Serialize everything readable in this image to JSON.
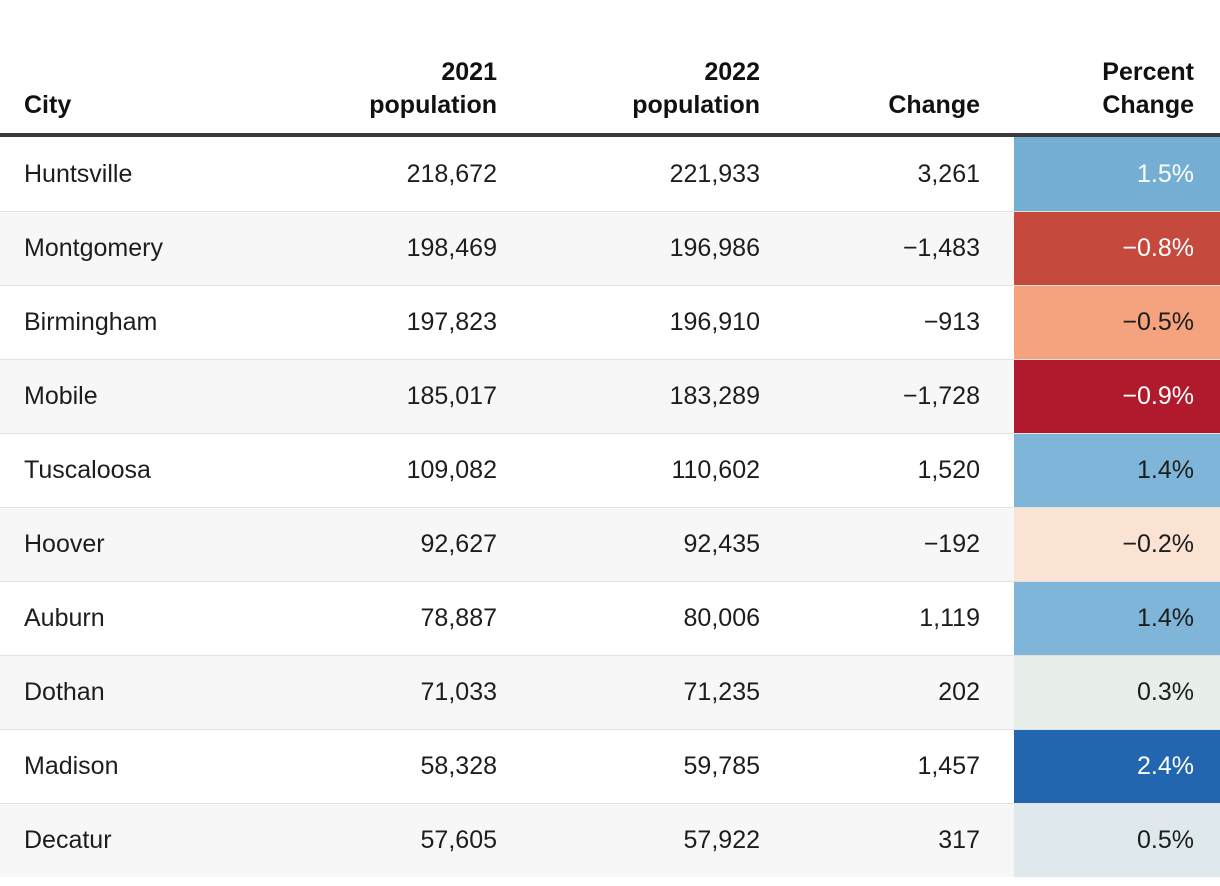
{
  "header": {
    "city": "City",
    "pop2021_line1": "2021",
    "pop2021_line2": "population",
    "pop2022_line1": "2022",
    "pop2022_line2": "population",
    "change": "Change",
    "percent_line1": "Percent",
    "percent_line2": "Change"
  },
  "table": {
    "rows": [
      {
        "city": "Huntsville",
        "pop2021": "218,672",
        "pop2022": "221,933",
        "change": "3,261",
        "percent": "1.5%",
        "percent_bg": "#74afd3",
        "percent_color": "#ffffff"
      },
      {
        "city": "Montgomery",
        "pop2021": "198,469",
        "pop2022": "196,986",
        "change": "−1,483",
        "percent": "−0.8%",
        "percent_bg": "#c5493d",
        "percent_color": "#ffffff"
      },
      {
        "city": "Birmingham",
        "pop2021": "197,823",
        "pop2022": "196,910",
        "change": "−913",
        "percent": "−0.5%",
        "percent_bg": "#f5a27f",
        "percent_color": "#1d1d1d"
      },
      {
        "city": "Mobile",
        "pop2021": "185,017",
        "pop2022": "183,289",
        "change": "−1,728",
        "percent": "−0.9%",
        "percent_bg": "#b11a2c",
        "percent_color": "#ffffff"
      },
      {
        "city": "Tuscaloosa",
        "pop2021": "109,082",
        "pop2022": "110,602",
        "change": "1,520",
        "percent": "1.4%",
        "percent_bg": "#7fb5d8",
        "percent_color": "#1d1d1d"
      },
      {
        "city": "Hoover",
        "pop2021": "92,627",
        "pop2022": "92,435",
        "change": "−192",
        "percent": "−0.2%",
        "percent_bg": "#fbe3d3",
        "percent_color": "#1d1d1d"
      },
      {
        "city": "Auburn",
        "pop2021": "78,887",
        "pop2022": "80,006",
        "change": "1,119",
        "percent": "1.4%",
        "percent_bg": "#7fb5d8",
        "percent_color": "#1d1d1d"
      },
      {
        "city": "Dothan",
        "pop2021": "71,033",
        "pop2022": "71,235",
        "change": "202",
        "percent": "0.3%",
        "percent_bg": "#e8eee9",
        "percent_color": "#1d1d1d"
      },
      {
        "city": "Madison",
        "pop2021": "58,328",
        "pop2022": "59,785",
        "change": "1,457",
        "percent": "2.4%",
        "percent_bg": "#2166ae",
        "percent_color": "#ffffff"
      },
      {
        "city": "Decatur",
        "pop2021": "57,605",
        "pop2022": "57,922",
        "change": "317",
        "percent": "0.5%",
        "percent_bg": "#dfe9ed",
        "percent_color": "#1d1d1d"
      }
    ]
  },
  "style": {
    "stripe_color": "#f7f7f7",
    "separator_color": "#e2e2e2",
    "header_border_color": "#3a3a3a",
    "text_color": "#1d1d1d"
  },
  "chart_data": {
    "type": "table",
    "columns": [
      "City",
      "2021 population",
      "2022 population",
      "Change",
      "Percent Change"
    ],
    "rows": [
      [
        "Huntsville",
        218672,
        221933,
        3261,
        1.5
      ],
      [
        "Montgomery",
        198469,
        196986,
        -1483,
        -0.8
      ],
      [
        "Birmingham",
        197823,
        196910,
        -913,
        -0.5
      ],
      [
        "Mobile",
        185017,
        183289,
        -1728,
        -0.9
      ],
      [
        "Tuscaloosa",
        109082,
        110602,
        1520,
        1.4
      ],
      [
        "Hoover",
        92627,
        92435,
        -192,
        -0.2
      ],
      [
        "Auburn",
        78887,
        80006,
        1119,
        1.4
      ],
      [
        "Dothan",
        71033,
        71235,
        202,
        0.3
      ],
      [
        "Madison",
        58328,
        59785,
        1457,
        2.4
      ],
      [
        "Decatur",
        57605,
        57922,
        317,
        0.5
      ]
    ],
    "heatmap_column": "Percent Change",
    "heatmap_palette": "diverging red-blue (negative=red, positive=blue)"
  }
}
